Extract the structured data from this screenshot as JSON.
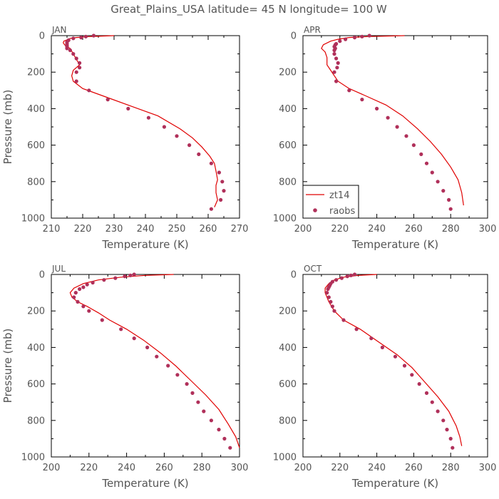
{
  "figure": {
    "title": "Great_Plains_USA   latitude= 45 N longitude= 100 W"
  },
  "legend": {
    "model_label": "zt14",
    "obs_label": "raobs",
    "location": "bottom-left of APR panel"
  },
  "colors": {
    "model": "#e00000",
    "obs": "#b0305a",
    "text": "#555555",
    "axis": "#000000"
  },
  "chart_data": [
    {
      "type": "line",
      "panel": "JAN",
      "xlabel": "Temperature (K)",
      "ylabel": "Pressure (mb)",
      "xlim": [
        210,
        270
      ],
      "ylim": [
        1000,
        0
      ],
      "xticks": [
        210,
        220,
        230,
        240,
        250,
        260,
        270
      ],
      "yticks": [
        0,
        200,
        400,
        600,
        800,
        1000
      ],
      "series": [
        {
          "name": "zt14",
          "kind": "line",
          "points": [
            [
              230,
              0
            ],
            [
              222,
              5
            ],
            [
              218,
              10
            ],
            [
              216,
              15
            ],
            [
              215.5,
              20
            ],
            [
              214,
              30
            ],
            [
              213.8,
              40
            ],
            [
              214.5,
              55
            ],
            [
              216,
              70
            ],
            [
              217,
              100
            ],
            [
              218,
              130
            ],
            [
              219,
              160
            ],
            [
              217,
              190
            ],
            [
              216.5,
              220
            ],
            [
              217,
              250
            ],
            [
              220,
              290
            ],
            [
              228,
              340
            ],
            [
              236,
              390
            ],
            [
              244,
              440
            ],
            [
              251,
              510
            ],
            [
              255,
              560
            ],
            [
              258,
              610
            ],
            [
              260.5,
              660
            ],
            [
              262,
              700
            ],
            [
              262.6,
              750
            ],
            [
              263,
              790
            ],
            [
              262.5,
              820
            ],
            [
              262.5,
              860
            ],
            [
              263,
              900
            ],
            [
              262,
              940
            ]
          ]
        },
        {
          "name": "raobs",
          "kind": "scatter",
          "points": [
            [
              223.5,
              0
            ],
            [
              221,
              5
            ],
            [
              219.5,
              10
            ],
            [
              217,
              15
            ],
            [
              215.5,
              25
            ],
            [
              215,
              35
            ],
            [
              215,
              45
            ],
            [
              215,
              55
            ],
            [
              215,
              60
            ],
            [
              215,
              70
            ],
            [
              216,
              80
            ],
            [
              217,
              100
            ],
            [
              218,
              125
            ],
            [
              219,
              150
            ],
            [
              219,
              175
            ],
            [
              218,
              200
            ],
            [
              218,
              250
            ],
            [
              222,
              300
            ],
            [
              228,
              350
            ],
            [
              234.5,
              400
            ],
            [
              241,
              450
            ],
            [
              246,
              500
            ],
            [
              250,
              550
            ],
            [
              254,
              600
            ],
            [
              257,
              650
            ],
            [
              261,
              700
            ],
            [
              263.5,
              750
            ],
            [
              264.5,
              800
            ],
            [
              265,
              850
            ],
            [
              264,
              900
            ],
            [
              261,
              950
            ]
          ]
        }
      ]
    },
    {
      "type": "line",
      "panel": "APR",
      "xlabel": "Temperature (K)",
      "ylabel": "",
      "xlim": [
        200,
        300
      ],
      "ylim": [
        1000,
        0
      ],
      "xticks": [
        200,
        220,
        240,
        260,
        280,
        300
      ],
      "yticks": [
        0,
        200,
        400,
        600,
        800,
        1000
      ],
      "series": [
        {
          "name": "zt14",
          "kind": "line",
          "points": [
            [
              255,
              0
            ],
            [
              235,
              5
            ],
            [
              225,
              10
            ],
            [
              219,
              20
            ],
            [
              215,
              30
            ],
            [
              211,
              50
            ],
            [
              210,
              70
            ],
            [
              212,
              90
            ],
            [
              213,
              120
            ],
            [
              213,
              160
            ],
            [
              215,
              190
            ],
            [
              217,
              220
            ],
            [
              219,
              250
            ],
            [
              225,
              290
            ],
            [
              234,
              330
            ],
            [
              245,
              380
            ],
            [
              254,
              440
            ],
            [
              262,
              510
            ],
            [
              269,
              580
            ],
            [
              275,
              650
            ],
            [
              280,
              720
            ],
            [
              284,
              790
            ],
            [
              286,
              860
            ],
            [
              287,
              930
            ]
          ]
        },
        {
          "name": "raobs",
          "kind": "scatter",
          "points": [
            [
              236,
              0
            ],
            [
              232,
              5
            ],
            [
              228,
              10
            ],
            [
              223,
              20
            ],
            [
              220,
              30
            ],
            [
              218,
              45
            ],
            [
              217.5,
              50
            ],
            [
              217,
              60
            ],
            [
              217.5,
              70
            ],
            [
              217,
              80
            ],
            [
              217,
              100
            ],
            [
              218,
              125
            ],
            [
              219,
              150
            ],
            [
              218.5,
              175
            ],
            [
              217,
              200
            ],
            [
              218,
              250
            ],
            [
              225,
              300
            ],
            [
              232,
              350
            ],
            [
              240,
              400
            ],
            [
              246,
              450
            ],
            [
              251,
              500
            ],
            [
              256,
              550
            ],
            [
              260,
              600
            ],
            [
              264,
              650
            ],
            [
              267,
              700
            ],
            [
              270,
              750
            ],
            [
              273,
              800
            ],
            [
              276,
              850
            ],
            [
              279,
              900
            ],
            [
              280,
              950
            ]
          ]
        }
      ]
    },
    {
      "type": "line",
      "panel": "JUL",
      "xlabel": "Temperature (K)",
      "ylabel": "Pressure (mb)",
      "xlim": [
        200,
        300
      ],
      "ylim": [
        1000,
        0
      ],
      "xticks": [
        200,
        220,
        240,
        260,
        280,
        300
      ],
      "yticks": [
        0,
        200,
        400,
        600,
        800,
        1000
      ],
      "series": [
        {
          "name": "zt14",
          "kind": "line",
          "points": [
            [
              265,
              0
            ],
            [
              250,
              5
            ],
            [
              237,
              15
            ],
            [
              225,
              30
            ],
            [
              217,
              50
            ],
            [
              212,
              75
            ],
            [
              210,
              100
            ],
            [
              211,
              125
            ],
            [
              214,
              150
            ],
            [
              219,
              175
            ],
            [
              225,
              210
            ],
            [
              231,
              250
            ],
            [
              240,
              300
            ],
            [
              249,
              360
            ],
            [
              258,
              430
            ],
            [
              266,
              500
            ],
            [
              274,
              580
            ],
            [
              282,
              660
            ],
            [
              289,
              740
            ],
            [
              294,
              820
            ],
            [
              298,
              890
            ],
            [
              300,
              950
            ]
          ]
        },
        {
          "name": "raobs",
          "kind": "scatter",
          "points": [
            [
              244,
              0
            ],
            [
              242,
              5
            ],
            [
              239,
              10
            ],
            [
              234,
              20
            ],
            [
              228,
              30
            ],
            [
              222,
              45
            ],
            [
              219,
              55
            ],
            [
              217,
              70
            ],
            [
              215,
              80
            ],
            [
              213,
              100
            ],
            [
              212,
              125
            ],
            [
              214,
              150
            ],
            [
              217,
              175
            ],
            [
              220,
              200
            ],
            [
              227,
              250
            ],
            [
              237,
              300
            ],
            [
              244,
              350
            ],
            [
              251,
              400
            ],
            [
              256,
              450
            ],
            [
              262,
              500
            ],
            [
              267,
              550
            ],
            [
              272,
              600
            ],
            [
              275,
              650
            ],
            [
              278,
              700
            ],
            [
              281,
              750
            ],
            [
              285,
              800
            ],
            [
              289,
              850
            ],
            [
              292,
              900
            ],
            [
              295,
              950
            ]
          ]
        }
      ]
    },
    {
      "type": "line",
      "panel": "OCT",
      "xlabel": "Temperature (K)",
      "ylabel": "",
      "xlim": [
        200,
        300
      ],
      "ylim": [
        1000,
        0
      ],
      "xticks": [
        200,
        220,
        240,
        260,
        280,
        300
      ],
      "yticks": [
        0,
        200,
        400,
        600,
        800,
        1000
      ],
      "series": [
        {
          "name": "zt14",
          "kind": "line",
          "points": [
            [
              240,
              0
            ],
            [
              230,
              5
            ],
            [
              222,
              15
            ],
            [
              217,
              30
            ],
            [
              214,
              50
            ],
            [
              212,
              75
            ],
            [
              212,
              100
            ],
            [
              214,
              150
            ],
            [
              217,
              200
            ],
            [
              222,
              250
            ],
            [
              231,
              300
            ],
            [
              241,
              370
            ],
            [
              251,
              440
            ],
            [
              259,
              510
            ],
            [
              266,
              590
            ],
            [
              273,
              670
            ],
            [
              279,
              750
            ],
            [
              283,
              830
            ],
            [
              285,
              890
            ],
            [
              286,
              940
            ]
          ]
        },
        {
          "name": "raobs",
          "kind": "scatter",
          "points": [
            [
              228,
              0
            ],
            [
              226,
              5
            ],
            [
              224,
              10
            ],
            [
              221,
              20
            ],
            [
              218,
              30
            ],
            [
              216,
              40
            ],
            [
              215,
              50
            ],
            [
              214.5,
              60
            ],
            [
              214,
              70
            ],
            [
              213.5,
              80
            ],
            [
              213,
              100
            ],
            [
              214,
              125
            ],
            [
              215,
              150
            ],
            [
              216,
              175
            ],
            [
              217,
              200
            ],
            [
              222,
              250
            ],
            [
              229,
              300
            ],
            [
              237,
              350
            ],
            [
              243,
              400
            ],
            [
              250,
              450
            ],
            [
              255,
              500
            ],
            [
              259,
              550
            ],
            [
              263,
              600
            ],
            [
              267,
              650
            ],
            [
              270,
              700
            ],
            [
              273,
              750
            ],
            [
              276,
              800
            ],
            [
              278,
              850
            ],
            [
              280,
              900
            ],
            [
              281,
              950
            ]
          ]
        }
      ]
    }
  ]
}
